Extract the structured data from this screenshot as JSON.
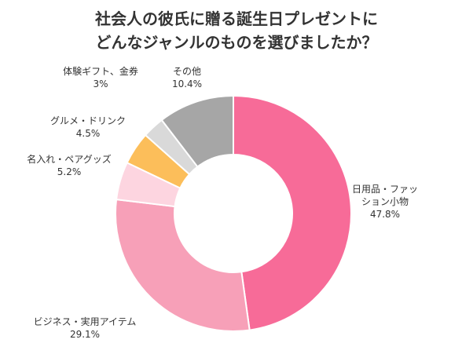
{
  "chart_data": {
    "type": "donut",
    "title": [
      "社会人の彼氏に贈る誕生日プレゼントに",
      "どんなジャンルのものを選びましたか？"
    ],
    "categories": [
      "日用品・ファッション小物",
      "ビジネス・実用アイテム",
      "名入れ・ペアグッズ",
      "グルメ・ドリンク",
      "体験ギフト、金券",
      "その他"
    ],
    "values": [
      47.8,
      29.1,
      5.2,
      4.5,
      3,
      10.4
    ],
    "value_labels": [
      "47.8%",
      "29.1%",
      "5.2%",
      "4.5%",
      "3%",
      "10.4%"
    ],
    "colors": [
      "#f76b98",
      "#f7a0b8",
      "#fdd5e0",
      "#fcbe5a",
      "#d9d9d9",
      "#a6a6a6"
    ]
  }
}
